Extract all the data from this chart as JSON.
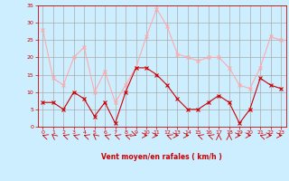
{
  "x": [
    0,
    1,
    2,
    3,
    4,
    5,
    6,
    7,
    8,
    9,
    10,
    11,
    12,
    13,
    14,
    15,
    16,
    17,
    18,
    19,
    20,
    21,
    22,
    23
  ],
  "vent_moyen": [
    7,
    7,
    5,
    10,
    8,
    3,
    7,
    1,
    10,
    17,
    17,
    15,
    12,
    8,
    5,
    5,
    7,
    9,
    7,
    1,
    5,
    14,
    12,
    11
  ],
  "en_rafales": [
    28,
    14,
    12,
    20,
    23,
    10,
    16,
    7,
    12,
    17,
    26,
    34,
    29,
    21,
    20,
    19,
    20,
    20,
    17,
    12,
    11,
    17,
    26,
    25
  ],
  "color_moyen": "#cc0000",
  "color_rafales": "#ffaaaa",
  "background_color": "#cceeff",
  "grid_color": "#aaaaaa",
  "xlabel": "Vent moyen/en rafales ( km/h )",
  "ylim": [
    0,
    35
  ],
  "xlim": [
    -0.5,
    23.5
  ],
  "yticks": [
    0,
    5,
    10,
    15,
    20,
    25,
    30,
    35
  ],
  "xticks": [
    0,
    1,
    2,
    3,
    4,
    5,
    6,
    7,
    8,
    9,
    10,
    11,
    12,
    13,
    14,
    15,
    16,
    17,
    18,
    19,
    20,
    21,
    22,
    23
  ]
}
